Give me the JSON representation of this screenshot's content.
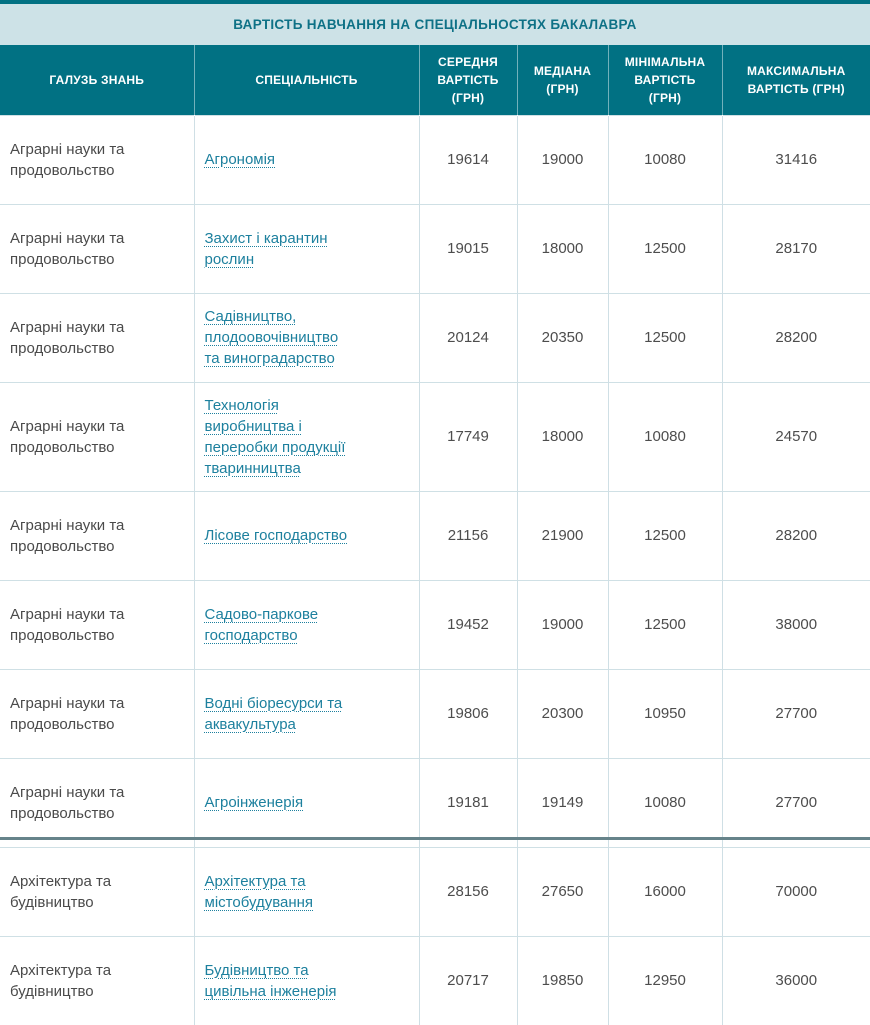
{
  "title": "ВАРТІСТЬ НАВЧАННЯ НА СПЕЦІАЛЬНОСТЯХ БАКАЛАВРА",
  "colors": {
    "accent_teal": "#017183",
    "title_bg": "#cde2e7",
    "title_text": "#0e7186",
    "link": "#1d809e",
    "body_text": "#4a4a4a",
    "row_border": "#cfe0e5"
  },
  "table": {
    "headers": [
      "ГАЛУЗЬ ЗНАНЬ",
      "СПЕЦІАЛЬНІСТЬ",
      "СЕРЕДНЯ ВАРТІСТЬ (ГРН)",
      "МЕДІАНА (ГРН)",
      "МІНІМАЛЬНА ВАРТІСТЬ (ГРН)",
      "МАКСИМАЛЬНА ВАРТІСТЬ (ГРН)"
    ],
    "rows": [
      {
        "field": "Аграрні науки та продовольство",
        "specialty": "Агрономія",
        "avg": "19614",
        "median": "19000",
        "min": "10080",
        "max": "31416"
      },
      {
        "field": "Аграрні науки та продовольство",
        "specialty": "Захист і карантин рослин",
        "avg": "19015",
        "median": "18000",
        "min": "12500",
        "max": "28170"
      },
      {
        "field": "Аграрні науки та продовольство",
        "specialty": "Садівництво, плодоовочівництво та виноградарство",
        "avg": "20124",
        "median": "20350",
        "min": "12500",
        "max": "28200"
      },
      {
        "field": "Аграрні науки та продовольство",
        "specialty": "Технологія виробництва і переробки продукції тваринництва",
        "avg": "17749",
        "median": "18000",
        "min": "10080",
        "max": "24570"
      },
      {
        "field": "Аграрні науки та продовольство",
        "specialty": "Лісове господарство",
        "avg": "21156",
        "median": "21900",
        "min": "12500",
        "max": "28200"
      },
      {
        "field": "Аграрні науки та продовольство",
        "specialty": "Садово-паркове господарство",
        "avg": "19452",
        "median": "19000",
        "min": "12500",
        "max": "38000"
      },
      {
        "field": "Аграрні науки та продовольство",
        "specialty": "Водні біоресурси та аквакультура",
        "avg": "19806",
        "median": "20300",
        "min": "10950",
        "max": "27700"
      },
      {
        "field": "Аграрні науки та продовольство",
        "specialty": "Агроінженерія",
        "avg": "19181",
        "median": "19149",
        "min": "10080",
        "max": "27700"
      },
      {
        "field": "Архітектура та будівництво",
        "specialty": "Архітектура та містобудування",
        "avg": "28156",
        "median": "27650",
        "min": "16000",
        "max": "70000"
      },
      {
        "field": "Архітектура та будівництво",
        "specialty": "Будівництво та цивільна інженерія",
        "avg": "20717",
        "median": "19850",
        "min": "12950",
        "max": "36000"
      }
    ]
  }
}
